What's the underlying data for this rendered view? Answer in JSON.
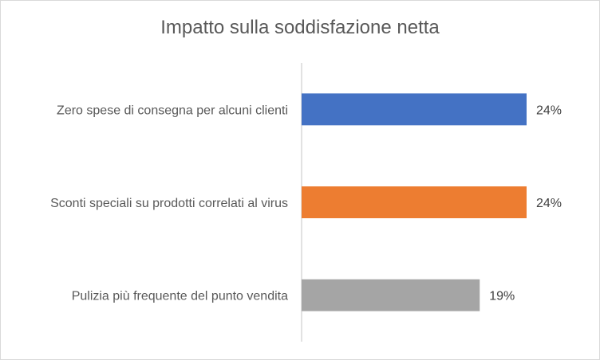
{
  "chart_data": {
    "type": "bar",
    "orientation": "horizontal",
    "title": "Impatto sulla soddisfazione netta",
    "categories": [
      "Zero spese di consegna per alcuni clienti",
      "Sconti speciali su prodotti correlati al virus",
      "Pulizia più frequente del punto vendita"
    ],
    "values": [
      24,
      24,
      19
    ],
    "value_labels": [
      "24%",
      "24%",
      "19%"
    ],
    "bar_colors": [
      "#4472c4",
      "#ed7d31",
      "#a5a5a5"
    ],
    "xlim": [
      0,
      30
    ],
    "grid": false,
    "legend": "none"
  }
}
